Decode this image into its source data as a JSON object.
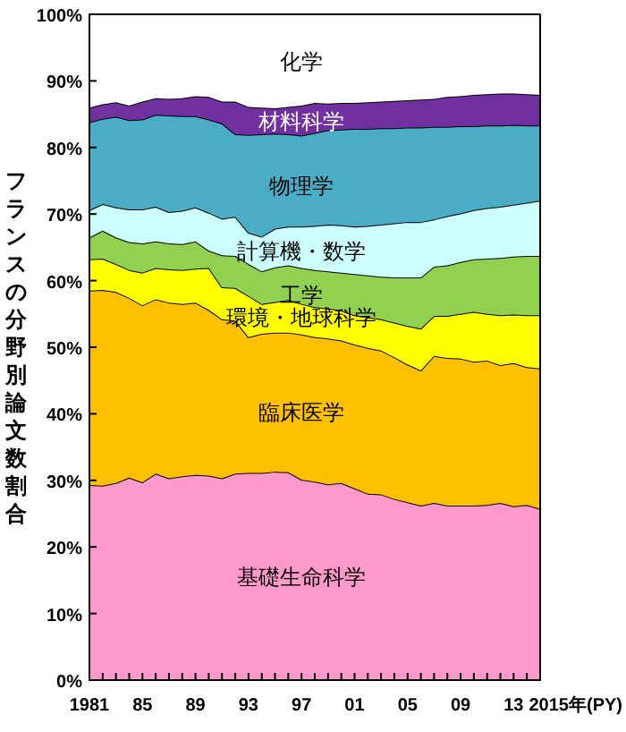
{
  "chart_data": {
    "type": "area",
    "stacked": true,
    "ylabel": "フランスの分野別論文数割合",
    "x": [
      1981,
      1982,
      1983,
      1984,
      1985,
      1986,
      1987,
      1988,
      1989,
      1990,
      1991,
      1992,
      1993,
      1994,
      1995,
      1996,
      1997,
      1998,
      1999,
      2000,
      2001,
      2002,
      2003,
      2004,
      2005,
      2006,
      2007,
      2008,
      2009,
      2010,
      2011,
      2012,
      2013,
      2014,
      2015
    ],
    "xlim": [
      1981,
      2015
    ],
    "xticks": [
      {
        "value": 1981,
        "label": "1981"
      },
      {
        "value": 1982,
        "label": null
      },
      {
        "value": 1983,
        "label": null
      },
      {
        "value": 1984,
        "label": null
      },
      {
        "value": 1985,
        "label": "85"
      },
      {
        "value": 1986,
        "label": null
      },
      {
        "value": 1987,
        "label": null
      },
      {
        "value": 1988,
        "label": null
      },
      {
        "value": 1989,
        "label": "89"
      },
      {
        "value": 1990,
        "label": null
      },
      {
        "value": 1991,
        "label": null
      },
      {
        "value": 1992,
        "label": null
      },
      {
        "value": 1993,
        "label": "93"
      },
      {
        "value": 1994,
        "label": null
      },
      {
        "value": 1995,
        "label": null
      },
      {
        "value": 1996,
        "label": null
      },
      {
        "value": 1997,
        "label": "97"
      },
      {
        "value": 1998,
        "label": null
      },
      {
        "value": 1999,
        "label": null
      },
      {
        "value": 2000,
        "label": null
      },
      {
        "value": 2001,
        "label": "01"
      },
      {
        "value": 2002,
        "label": null
      },
      {
        "value": 2003,
        "label": null
      },
      {
        "value": 2004,
        "label": null
      },
      {
        "value": 2005,
        "label": "05"
      },
      {
        "value": 2006,
        "label": null
      },
      {
        "value": 2007,
        "label": null
      },
      {
        "value": 2008,
        "label": null
      },
      {
        "value": 2009,
        "label": "09"
      },
      {
        "value": 2010,
        "label": null
      },
      {
        "value": 2011,
        "label": null
      },
      {
        "value": 2012,
        "label": null
      },
      {
        "value": 2013,
        "label": "13"
      },
      {
        "value": 2014,
        "label": null
      },
      {
        "value": 2015,
        "label": null
      }
    ],
    "xlabel": "2015年(PY)",
    "ylim": [
      0,
      100
    ],
    "yticks": [
      {
        "value": 0,
        "label": "0%"
      },
      {
        "value": 10,
        "label": "10%"
      },
      {
        "value": 20,
        "label": "20%"
      },
      {
        "value": 30,
        "label": "30%"
      },
      {
        "value": 40,
        "label": "40%"
      },
      {
        "value": 50,
        "label": "50%"
      },
      {
        "value": 60,
        "label": "60%"
      },
      {
        "value": 70,
        "label": "70%"
      },
      {
        "value": 80,
        "label": "80%"
      },
      {
        "value": 90,
        "label": "90%"
      },
      {
        "value": 100,
        "label": "100%"
      }
    ],
    "grid": false,
    "series": [
      {
        "name": "基礎生命科学",
        "color": "#ff99cc",
        "values": [
          29.3,
          29.2,
          29.6,
          30.4,
          29.7,
          31.0,
          30.3,
          30.6,
          30.8,
          30.7,
          30.3,
          31.0,
          31.1,
          31.1,
          31.3,
          31.2,
          30.1,
          29.8,
          29.4,
          29.6,
          28.8,
          28.0,
          27.9,
          27.2,
          26.7,
          26.2,
          26.6,
          26.2,
          26.2,
          26.2,
          26.3,
          26.6,
          26.1,
          26.3,
          25.7
        ]
      },
      {
        "name": "臨床医学",
        "color": "#ffc000",
        "values": [
          29.2,
          29.4,
          28.7,
          27.0,
          26.6,
          26.2,
          26.4,
          25.9,
          25.9,
          24.9,
          23.9,
          23.0,
          20.4,
          20.9,
          20.9,
          21.0,
          21.8,
          21.7,
          21.9,
          21.4,
          21.6,
          21.9,
          21.6,
          21.3,
          20.7,
          20.3,
          22.1,
          22.2,
          22.1,
          21.6,
          21.7,
          20.7,
          21.5,
          20.7,
          21.1
        ]
      },
      {
        "name": "環境・地球科学",
        "color": "#ffff00",
        "values": [
          4.7,
          4.7,
          4.2,
          4.2,
          4.9,
          4.7,
          5.0,
          5.1,
          5.1,
          6.3,
          4.8,
          4.9,
          6.2,
          4.5,
          4.6,
          4.9,
          4.6,
          4.5,
          4.5,
          4.5,
          4.4,
          4.6,
          4.7,
          5.2,
          5.8,
          6.3,
          6.0,
          6.3,
          6.7,
          7.5,
          7.0,
          7.5,
          7.3,
          7.8,
          8.0
        ]
      },
      {
        "name": "工学",
        "color": "#92d050",
        "values": [
          3.3,
          4.2,
          4.0,
          4.2,
          4.4,
          4.0,
          3.9,
          3.9,
          4.1,
          2.6,
          4.8,
          4.8,
          4.8,
          4.9,
          5.2,
          5.2,
          5.4,
          5.6,
          5.6,
          5.7,
          6.2,
          6.3,
          6.4,
          6.8,
          7.3,
          7.7,
          7.4,
          7.6,
          7.8,
          7.9,
          8.3,
          8.6,
          8.7,
          8.9,
          8.9
        ]
      },
      {
        "name": "計算機・数学",
        "color": "#ccffff",
        "values": [
          4.1,
          4.0,
          4.5,
          4.9,
          5.1,
          5.2,
          4.7,
          5.0,
          5.1,
          5.7,
          5.5,
          5.9,
          4.7,
          5.2,
          5.8,
          5.8,
          6.2,
          6.6,
          7.0,
          7.1,
          7.1,
          7.4,
          7.8,
          8.1,
          8.3,
          8.3,
          7.1,
          7.4,
          7.3,
          7.4,
          7.6,
          7.7,
          7.8,
          8.0,
          8.3
        ]
      },
      {
        "name": "物理学",
        "color": "#4bacc6",
        "values": [
          13.2,
          12.8,
          13.6,
          13.4,
          13.5,
          13.8,
          14.5,
          14.2,
          13.7,
          14.0,
          14.3,
          12.4,
          14.7,
          15.4,
          14.3,
          13.9,
          13.7,
          14.0,
          14.2,
          14.4,
          14.7,
          14.6,
          14.5,
          14.3,
          14.2,
          14.2,
          13.9,
          13.4,
          13.1,
          12.6,
          12.4,
          12.2,
          12.0,
          11.6,
          11.3
        ]
      },
      {
        "name": "材料科学",
        "color": "#7030a0",
        "values": [
          2.2,
          2.2,
          2.2,
          2.2,
          2.7,
          2.5,
          2.5,
          2.7,
          3.0,
          3.4,
          3.3,
          4.9,
          4.2,
          4.0,
          3.8,
          4.1,
          4.5,
          4.5,
          4.0,
          4.0,
          3.9,
          4.0,
          4.0,
          4.1,
          4.1,
          4.2,
          4.2,
          4.5,
          4.5,
          4.7,
          4.7,
          4.8,
          4.7,
          4.7,
          4.6
        ]
      },
      {
        "name": "化学",
        "color": "#ffffff",
        "values": [
          14.0,
          13.5,
          13.2,
          13.7,
          13.1,
          12.6,
          12.7,
          12.6,
          12.3,
          12.4,
          13.1,
          13.1,
          13.9,
          14.0,
          14.1,
          13.9,
          13.7,
          13.3,
          13.4,
          13.3,
          13.3,
          13.2,
          13.1,
          13.0,
          12.9,
          12.8,
          12.7,
          12.4,
          12.3,
          12.1,
          12.0,
          11.9,
          11.9,
          12.0,
          12.1
        ]
      }
    ]
  }
}
